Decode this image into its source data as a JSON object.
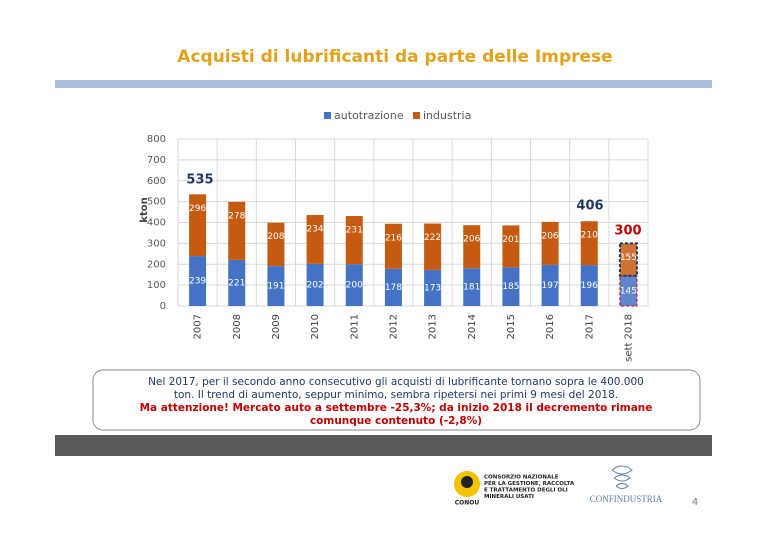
{
  "title": "Acquisti di lubrificanti da parte delle Imprese",
  "chart_data": {
    "type": "stacked_bar",
    "y_label": "kton",
    "categories": [
      "2007",
      "2008",
      "2009",
      "2010",
      "2011",
      "2012",
      "2013",
      "2014",
      "2015",
      "2016",
      "2017",
      "sett 2018"
    ],
    "series": [
      {
        "name": "autotrazione",
        "color": "#4472c4",
        "values": [
          239,
          221,
          191,
          202,
          200,
          178,
          173,
          181,
          185,
          197,
          196,
          145
        ]
      },
      {
        "name": "industria",
        "color": "#c55a11",
        "values": [
          296,
          278,
          208,
          234,
          231,
          216,
          222,
          206,
          201,
          206,
          210,
          155
        ]
      }
    ],
    "ylim": [
      0,
      800
    ],
    "yticks": [
      0,
      100,
      200,
      300,
      400,
      500,
      600,
      700,
      800
    ],
    "grid": true,
    "legend": "top",
    "annotations": [
      "535",
      "406",
      "300"
    ]
  },
  "text_box": {
    "lines": [
      "Nel 2017, per il secondo anno consecutivo gli acquisti di lubrificante tornano sopra le 400.000",
      "ton. Il trend di aumento, seppur minimo, sembra ripetersi nei primi 9 mesi del 2018."
    ],
    "highlight_lines": [
      "Ma attenzione! Mercato auto a settembre -25,3%; da inizio 2018 il decremento rimane",
      "comunque contenuto (-2,8%)"
    ]
  },
  "footer": {
    "conou_lines": [
      "CONSORZIO NAZIONALE",
      "PER LA GESTIONE, RACCOLTA",
      "E TRATTAMENTO DEGLI OLI",
      "MINERALI USATI"
    ],
    "conou": "CONOU",
    "confindustria": "CONFINDUSTRIA",
    "page": "4"
  }
}
